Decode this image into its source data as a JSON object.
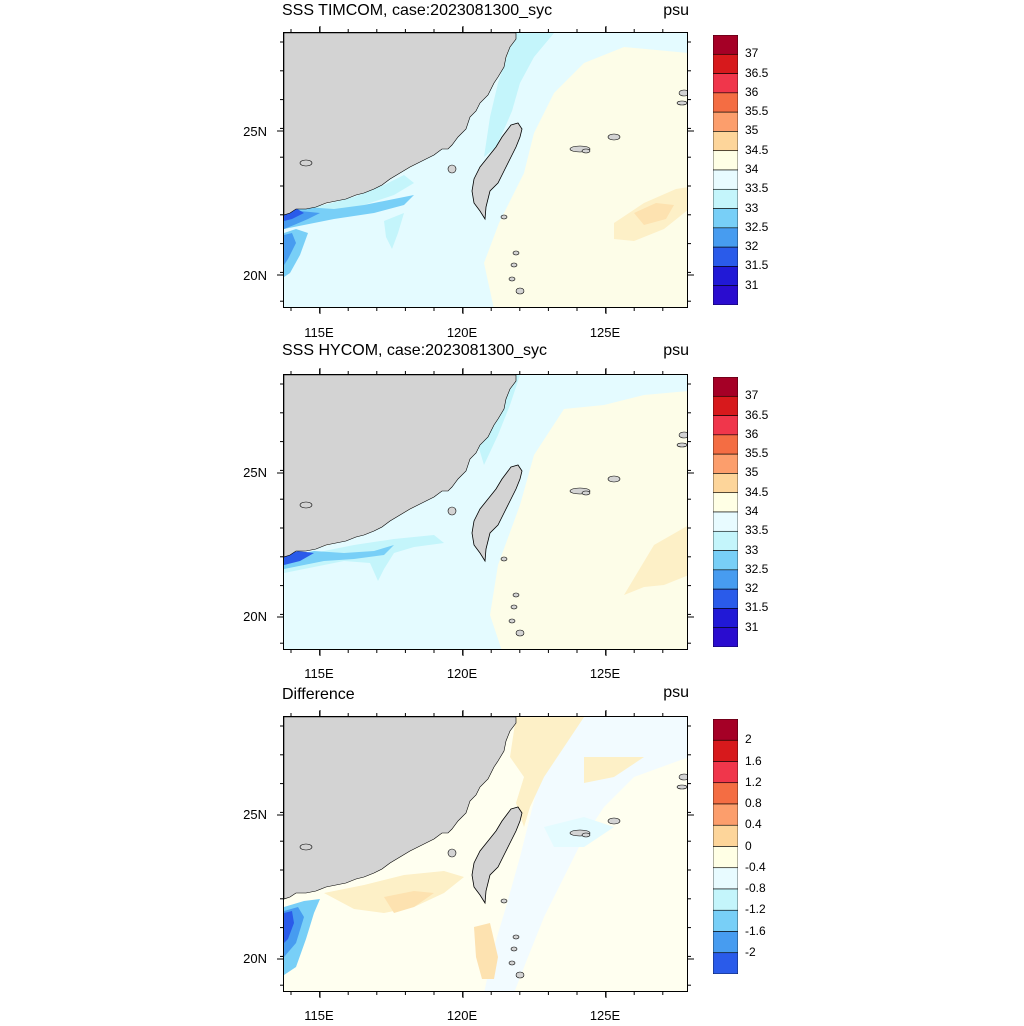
{
  "panels": [
    {
      "title": "SSS TIMCOM, case:2023081300_syc",
      "unit": "psu",
      "levels": [
        "37",
        "36.5",
        "36",
        "35.5",
        "35",
        "34.5",
        "34",
        "33.5",
        "33",
        "32.5",
        "32",
        "31.5",
        "31"
      ],
      "colors": [
        "#a50026",
        "#d7191c",
        "#f0364b",
        "#f46d43",
        "#fc9e6c",
        "#fdd59a",
        "#ffffe5",
        "#e8fbff",
        "#c4f5fb",
        "#78cff7",
        "#479cf0",
        "#2a5bea",
        "#2119d6",
        "#2a0ccf"
      ],
      "ocean_color": "#fdfde8",
      "variant": "timcom"
    },
    {
      "title": "SSS HYCOM, case:2023081300_syc",
      "unit": "psu",
      "levels": [
        "37",
        "36.5",
        "36",
        "35.5",
        "35",
        "34.5",
        "34",
        "33.5",
        "33",
        "32.5",
        "32",
        "31.5",
        "31"
      ],
      "colors": [
        "#a50026",
        "#d7191c",
        "#f0364b",
        "#f46d43",
        "#fc9e6c",
        "#fdd59a",
        "#ffffe5",
        "#e8fbff",
        "#c4f5fb",
        "#78cff7",
        "#479cf0",
        "#2a5bea",
        "#2119d6",
        "#2a0ccf"
      ],
      "ocean_color": "#fdfde8",
      "variant": "hycom"
    },
    {
      "title": "Difference",
      "unit": "psu",
      "levels": [
        "2",
        "1.6",
        "1.2",
        "0.8",
        "0.4",
        "0",
        "-0.4",
        "-0.8",
        "-1.2",
        "-1.6",
        "-2"
      ],
      "colors": [
        "#a50026",
        "#d7191c",
        "#f0364b",
        "#f46d43",
        "#fc9e6c",
        "#fdd59a",
        "#ffffe5",
        "#e8fbff",
        "#c4f5fb",
        "#78cff7",
        "#479cf0",
        "#2a5bea",
        "#2119d6",
        "#2a0ccf"
      ],
      "ocean_color": "#fffff0",
      "variant": "diff"
    }
  ],
  "axes": {
    "lat_labels": [
      "25N",
      "20N"
    ],
    "lon_labels": [
      "115E",
      "120E",
      "125E"
    ]
  },
  "colors": {
    "land": "#d3d3d3",
    "coast": "#000000"
  }
}
